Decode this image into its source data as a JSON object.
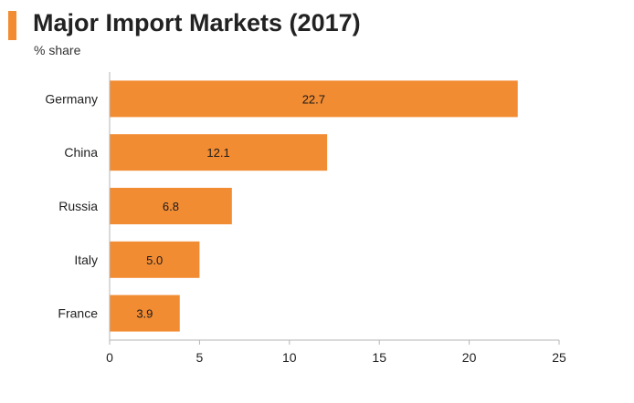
{
  "header": {
    "title": "Major Import Markets (2017)",
    "subtitle": "% share",
    "accent_color": "#f28c33"
  },
  "chart_data": {
    "type": "bar",
    "orientation": "horizontal",
    "title": "Major Import Markets (2017)",
    "subtitle": "% share",
    "categories": [
      "Germany",
      "China",
      "Russia",
      "Italy",
      "France"
    ],
    "values": [
      22.7,
      12.1,
      6.8,
      5.0,
      3.9
    ],
    "value_labels": [
      "22.7",
      "12.1",
      "6.8",
      "5.0",
      "3.9"
    ],
    "xlim": [
      0,
      25
    ],
    "x_ticks": [
      0,
      5,
      10,
      15,
      20,
      25
    ],
    "bar_color": "#f28c33",
    "grid": false,
    "legend": "none"
  }
}
